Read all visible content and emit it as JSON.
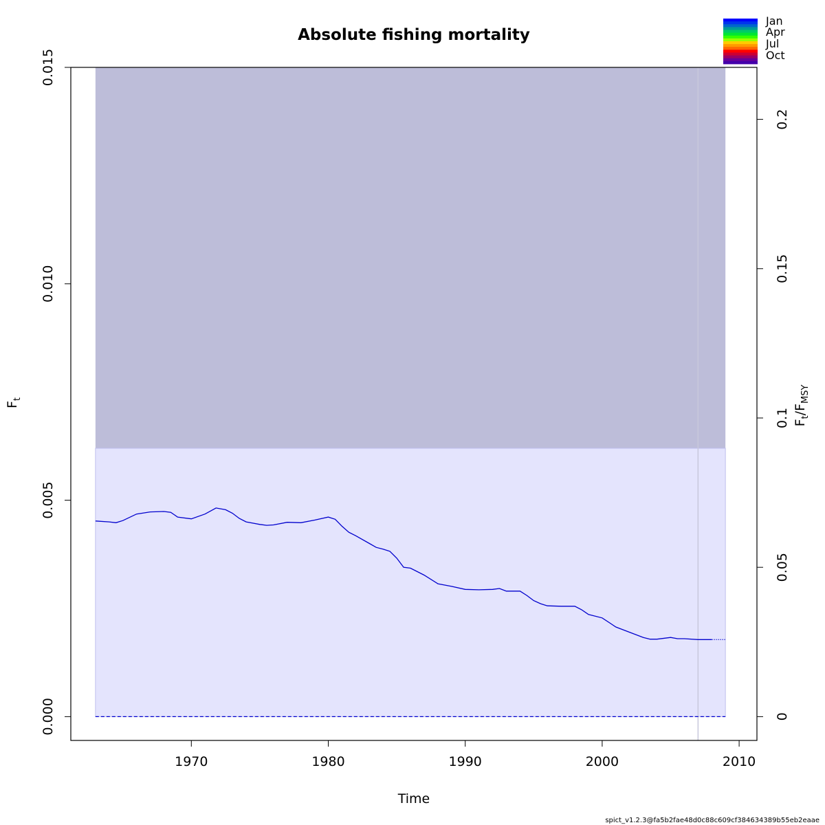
{
  "chart_data": {
    "type": "line",
    "title": "Absolute fishing mortality",
    "xlabel": "Time",
    "ylabel_left": {
      "main": "F",
      "sub": "t"
    },
    "ylabel_right": {
      "main": "F",
      "sub": "t",
      "sep": "/",
      "main2": "F",
      "sub2": "MSY"
    },
    "xlim": [
      1961.2,
      2011.3
    ],
    "ylim_left": [
      -0.00055,
      0.015
    ],
    "ylim_right": [
      -0.00797,
      0.2174
    ],
    "x_ticks": [
      1970,
      1980,
      1990,
      2000,
      2010
    ],
    "x_tick_labels": [
      "1970",
      "1980",
      "1990",
      "2000",
      "2010"
    ],
    "y_left_ticks": [
      0.0,
      0.005,
      0.01,
      0.015
    ],
    "y_left_tick_labels": [
      "0.000",
      "0.005",
      "0.010",
      "0.015"
    ],
    "y_right_ticks": [
      0,
      0.05,
      0.1,
      0.15,
      0.2
    ],
    "y_right_tick_labels": [
      "0",
      "0.05",
      "0.1",
      "0.15",
      "0.2"
    ],
    "fmsy_region": {
      "x_start": 1963.0,
      "x_end": 2009.0,
      "y_low": 0.0,
      "y_high": 0.0062
    },
    "upper_region": {
      "x_start": 1963.0,
      "x_end": 2009.0,
      "y_low": 0.0062,
      "y_high": 0.015
    },
    "last_observation_x": 2007.0,
    "zero_line_y": 0.0,
    "series": [
      {
        "name": "F estimate",
        "x": [
          1963.0,
          1964.0,
          1964.5,
          1965.0,
          1966.0,
          1967.0,
          1968.0,
          1968.5,
          1969.0,
          1970.0,
          1971.0,
          1971.8,
          1972.5,
          1973.0,
          1973.5,
          1974.0,
          1975.0,
          1975.5,
          1976.0,
          1977.0,
          1978.0,
          1979.0,
          1980.0,
          1980.5,
          1981.0,
          1981.5,
          1982.0,
          1983.0,
          1983.5,
          1984.0,
          1984.5,
          1985.0,
          1985.5,
          1986.0,
          1987.0,
          1988.0,
          1989.0,
          1990.0,
          1991.0,
          1992.0,
          1992.5,
          1993.0,
          1994.0,
          1994.5,
          1995.0,
          1995.5,
          1996.0,
          1997.0,
          1998.0,
          1998.5,
          1999.0,
          2000.0,
          2001.0,
          2002.0,
          2003.0,
          2003.5,
          2004.0,
          2005.0,
          2005.5,
          2006.0,
          2007.0,
          2008.0
        ],
        "values": [
          0.00452,
          0.0045,
          0.00448,
          0.00453,
          0.00468,
          0.00473,
          0.00474,
          0.00472,
          0.00461,
          0.00457,
          0.00468,
          0.00482,
          0.00478,
          0.0047,
          0.00458,
          0.0045,
          0.00444,
          0.00442,
          0.00443,
          0.00449,
          0.00448,
          0.00454,
          0.00461,
          0.00456,
          0.0044,
          0.00426,
          0.00418,
          0.004,
          0.00391,
          0.00387,
          0.00382,
          0.00366,
          0.00345,
          0.00343,
          0.00327,
          0.00307,
          0.00301,
          0.00294,
          0.00293,
          0.00294,
          0.00296,
          0.0029,
          0.0029,
          0.0028,
          0.00268,
          0.00261,
          0.00256,
          0.00255,
          0.00255,
          0.00247,
          0.00236,
          0.00228,
          0.00207,
          0.00195,
          0.00183,
          0.00179,
          0.00179,
          0.00183,
          0.0018,
          0.0018,
          0.00178,
          0.00178
        ],
        "color": "#0000cd"
      },
      {
        "name": "F prediction",
        "x": [
          2008.0,
          2009.0
        ],
        "values": [
          0.00178,
          0.00178
        ],
        "color": "#0000cd"
      }
    ],
    "legend": {
      "placement": "top-right",
      "labels": [
        "Jan",
        "Apr",
        "Jul",
        "Oct"
      ],
      "colors": [
        "#0000ff",
        "#0033ee",
        "#0066cc",
        "#009999",
        "#00cc66",
        "#00e633",
        "#33ff00",
        "#99ff00",
        "#ffcc00",
        "#ff9900",
        "#ff6600",
        "#ff0000",
        "#cc0033",
        "#990066",
        "#660099",
        "#4400aa"
      ]
    }
  },
  "colors": {
    "upper_region": "#bdbdd9",
    "fmsy_region": "#e4e4fd",
    "fmsy_border": "#c0c0ee",
    "line": "#0000cd",
    "vline": "#c8c8dc"
  },
  "footer": "spict_v1.2.3@fa5b2fae48d0c88c609cf384634389b55eb2eaae"
}
